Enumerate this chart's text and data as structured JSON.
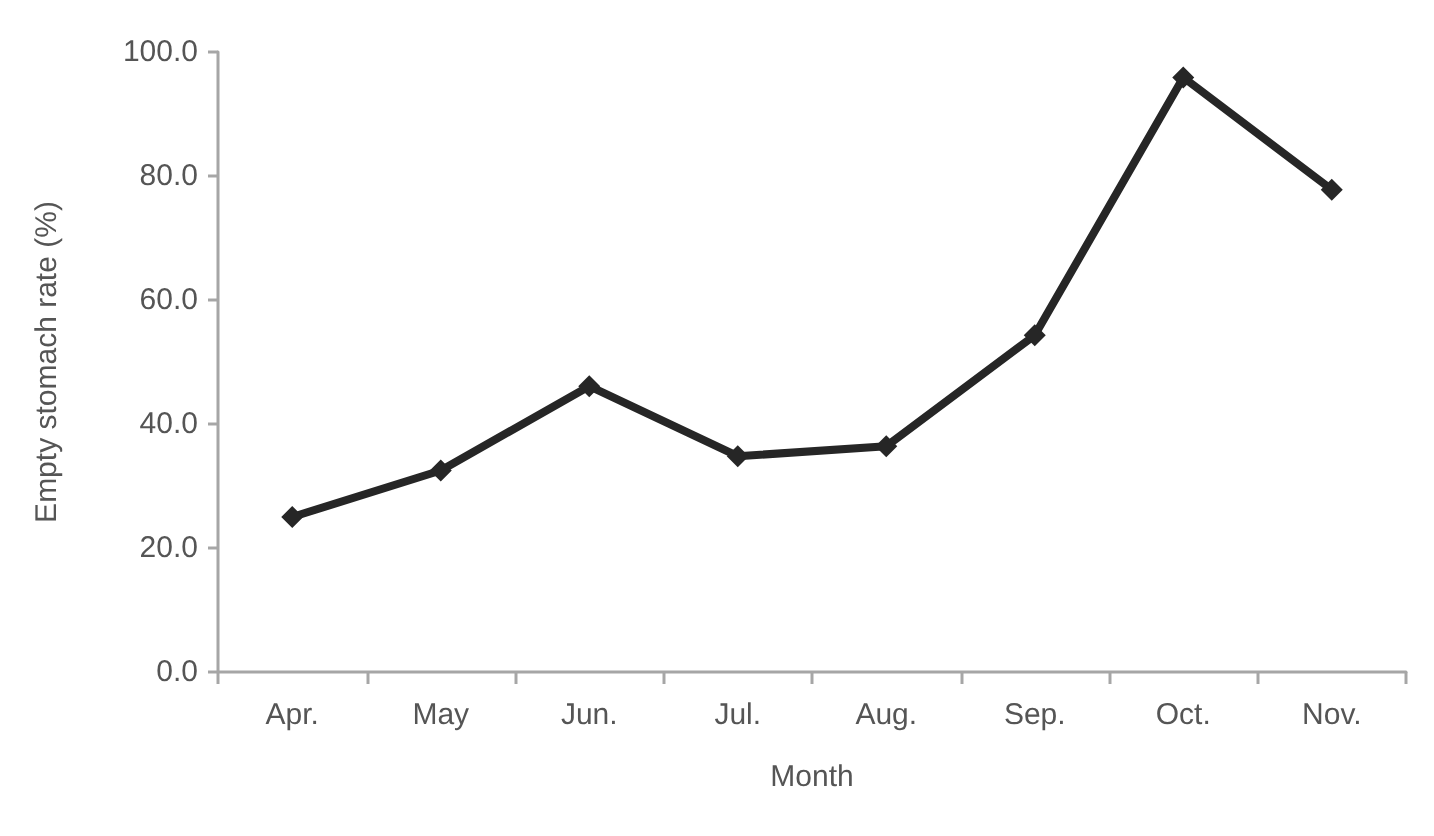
{
  "chart_data": {
    "type": "line",
    "xlabel": "Month",
    "ylabel": "Empty stomach rate (%)",
    "categories": [
      "Apr.",
      "May",
      "Jun.",
      "Jul.",
      "Aug.",
      "Sep.",
      "Oct.",
      "Nov."
    ],
    "series": [
      {
        "color": "#262626",
        "values": [
          25.0,
          32.5,
          46.1,
          34.8,
          36.4,
          54.3,
          95.9,
          77.8
        ]
      }
    ],
    "ylim": [
      0,
      100
    ],
    "yticks": [
      {
        "value": 0,
        "label": "0.0"
      },
      {
        "value": 20,
        "label": "20.0"
      },
      {
        "value": 40,
        "label": "40.0"
      },
      {
        "value": 60,
        "label": "60.0"
      },
      {
        "value": 80,
        "label": "80.0"
      },
      {
        "value": 100,
        "label": "100.0"
      }
    ],
    "grid": false,
    "marker": "diamond",
    "line_style": "solid"
  }
}
